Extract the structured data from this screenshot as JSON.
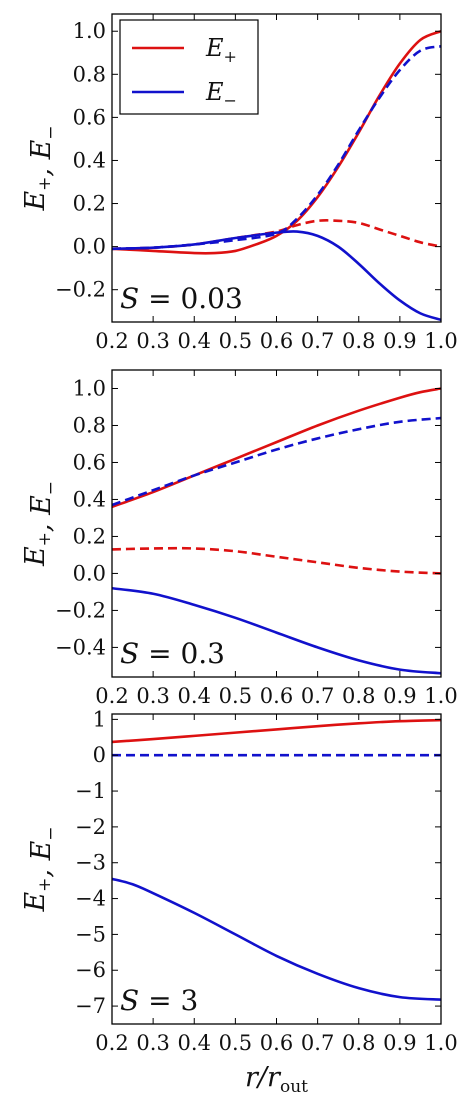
{
  "chart_data": [
    {
      "type": "line",
      "ylabel": "E+, E−",
      "xlabel": "",
      "xlim": [
        0.2,
        1.0
      ],
      "ylim": [
        -0.35,
        1.08
      ],
      "xticks": [
        0.2,
        0.3,
        0.4,
        0.5,
        0.6,
        0.7,
        0.8,
        0.9,
        1.0
      ],
      "xtick_labels": [
        "0.2",
        "0.3",
        "0.4",
        "0.5",
        "0.6",
        "0.7",
        "0.8",
        "0.9",
        "1.0"
      ],
      "yticks": [
        -0.2,
        0.0,
        0.2,
        0.4,
        0.6,
        0.8,
        1.0
      ],
      "ytick_labels": [
        "−0.2",
        "0.0",
        "0.2",
        "0.4",
        "0.6",
        "0.8",
        "1.0"
      ],
      "annotation": "S = 0.03",
      "legend": {
        "placement": "top-left",
        "entries": [
          {
            "label": "E+",
            "series": 0
          },
          {
            "label": "E−",
            "series": 2
          }
        ]
      },
      "series": [
        {
          "name": "E+",
          "color": "#dd1111",
          "dash": "solid",
          "x": [
            0.2,
            0.3,
            0.4,
            0.45,
            0.5,
            0.55,
            0.6,
            0.65,
            0.7,
            0.75,
            0.8,
            0.85,
            0.9,
            0.95,
            1.0
          ],
          "y": [
            -0.01,
            -0.02,
            -0.03,
            -0.03,
            -0.02,
            0.01,
            0.05,
            0.12,
            0.23,
            0.37,
            0.53,
            0.7,
            0.85,
            0.96,
            1.0
          ]
        },
        {
          "color": "#dd1111",
          "dash": "dashed",
          "x": [
            0.2,
            0.3,
            0.4,
            0.5,
            0.6,
            0.65,
            0.7,
            0.75,
            0.8,
            0.85,
            0.9,
            0.95,
            1.0
          ],
          "y": [
            -0.01,
            -0.005,
            0.01,
            0.04,
            0.07,
            0.1,
            0.12,
            0.12,
            0.11,
            0.08,
            0.05,
            0.02,
            0.0
          ]
        },
        {
          "name": "E−",
          "color": "#1111cc",
          "dash": "solid",
          "x": [
            0.2,
            0.3,
            0.4,
            0.5,
            0.6,
            0.65,
            0.7,
            0.75,
            0.8,
            0.85,
            0.9,
            0.95,
            1.0
          ],
          "y": [
            -0.01,
            -0.005,
            0.01,
            0.04,
            0.065,
            0.07,
            0.05,
            0.0,
            -0.08,
            -0.17,
            -0.25,
            -0.31,
            -0.34
          ]
        },
        {
          "color": "#1111cc",
          "dash": "dashed",
          "x": [
            0.2,
            0.3,
            0.4,
            0.5,
            0.6,
            0.65,
            0.7,
            0.75,
            0.8,
            0.85,
            0.9,
            0.95,
            1.0
          ],
          "y": [
            -0.01,
            -0.005,
            0.01,
            0.03,
            0.06,
            0.13,
            0.24,
            0.38,
            0.54,
            0.69,
            0.82,
            0.91,
            0.93
          ]
        }
      ]
    },
    {
      "type": "line",
      "ylabel": "E+, E−",
      "xlabel": "",
      "xlim": [
        0.2,
        1.0
      ],
      "ylim": [
        -0.56,
        1.1
      ],
      "xticks": [
        0.2,
        0.3,
        0.4,
        0.5,
        0.6,
        0.7,
        0.8,
        0.9,
        1.0
      ],
      "xtick_labels": [
        "0.2",
        "0.3",
        "0.4",
        "0.5",
        "0.6",
        "0.7",
        "0.8",
        "0.9",
        "1.0"
      ],
      "yticks": [
        -0.4,
        -0.2,
        0.0,
        0.2,
        0.4,
        0.6,
        0.8,
        1.0
      ],
      "ytick_labels": [
        "−0.4",
        "−0.2",
        "0.0",
        "0.2",
        "0.4",
        "0.6",
        "0.8",
        "1.0"
      ],
      "annotation": "S = 0.3",
      "series": [
        {
          "color": "#dd1111",
          "dash": "solid",
          "x": [
            0.2,
            0.3,
            0.4,
            0.5,
            0.6,
            0.7,
            0.8,
            0.9,
            0.95,
            1.0
          ],
          "y": [
            0.36,
            0.44,
            0.53,
            0.62,
            0.71,
            0.8,
            0.88,
            0.95,
            0.98,
            1.0
          ]
        },
        {
          "color": "#dd1111",
          "dash": "dashed",
          "x": [
            0.2,
            0.3,
            0.4,
            0.5,
            0.6,
            0.7,
            0.8,
            0.9,
            1.0
          ],
          "y": [
            0.13,
            0.135,
            0.135,
            0.12,
            0.09,
            0.06,
            0.03,
            0.01,
            0.0
          ]
        },
        {
          "color": "#1111cc",
          "dash": "solid",
          "x": [
            0.2,
            0.3,
            0.4,
            0.5,
            0.6,
            0.7,
            0.8,
            0.9,
            1.0
          ],
          "y": [
            -0.08,
            -0.11,
            -0.17,
            -0.24,
            -0.32,
            -0.4,
            -0.47,
            -0.52,
            -0.54
          ]
        },
        {
          "color": "#1111cc",
          "dash": "dashed",
          "x": [
            0.2,
            0.3,
            0.4,
            0.5,
            0.6,
            0.7,
            0.8,
            0.9,
            1.0
          ],
          "y": [
            0.37,
            0.45,
            0.53,
            0.6,
            0.67,
            0.73,
            0.78,
            0.82,
            0.84
          ]
        }
      ]
    },
    {
      "type": "line",
      "ylabel": "E+, E−",
      "xlabel": "r/r_out",
      "xlim": [
        0.2,
        1.0
      ],
      "ylim": [
        -7.5,
        1.15
      ],
      "xticks": [
        0.2,
        0.3,
        0.4,
        0.5,
        0.6,
        0.7,
        0.8,
        0.9,
        1.0
      ],
      "xtick_labels": [
        "0.2",
        "0.3",
        "0.4",
        "0.5",
        "0.6",
        "0.7",
        "0.8",
        "0.9",
        "1.0"
      ],
      "yticks": [
        -7,
        -6,
        -5,
        -4,
        -3,
        -2,
        -1,
        0,
        1
      ],
      "ytick_labels": [
        "−7",
        "−6",
        "−5",
        "−4",
        "−3",
        "−2",
        "−1",
        "0",
        "1"
      ],
      "annotation": "S = 3",
      "series": [
        {
          "color": "#dd1111",
          "dash": "solid",
          "x": [
            0.2,
            0.3,
            0.4,
            0.5,
            0.6,
            0.7,
            0.8,
            0.9,
            1.0
          ],
          "y": [
            0.37,
            0.45,
            0.54,
            0.63,
            0.72,
            0.81,
            0.89,
            0.95,
            0.98
          ]
        },
        {
          "color": "#1111cc",
          "dash": "dashed",
          "x": [
            0.2,
            1.0
          ],
          "y": [
            0.0,
            0.0
          ]
        },
        {
          "color": "#1111cc",
          "dash": "solid",
          "x": [
            0.2,
            0.25,
            0.3,
            0.4,
            0.5,
            0.6,
            0.7,
            0.8,
            0.9,
            1.0
          ],
          "y": [
            -3.45,
            -3.6,
            -3.85,
            -4.4,
            -5.0,
            -5.6,
            -6.1,
            -6.5,
            -6.75,
            -6.82
          ]
        }
      ]
    }
  ]
}
